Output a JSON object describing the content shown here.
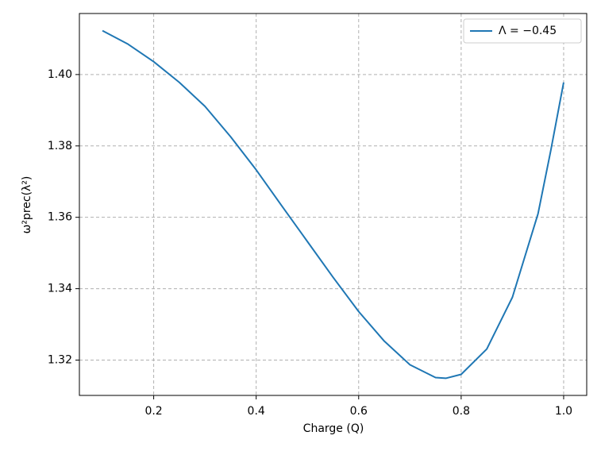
{
  "chart_data": {
    "type": "line",
    "xlabel": "Charge (Q)",
    "ylabel": "ω²prec(λ²)",
    "x": [
      0.1,
      0.15,
      0.2,
      0.25,
      0.3,
      0.35,
      0.4,
      0.45,
      0.5,
      0.55,
      0.6,
      0.65,
      0.7,
      0.75,
      0.77,
      0.8,
      0.85,
      0.9,
      0.95,
      0.975,
      1.0
    ],
    "series": [
      {
        "name": "Λ = −0.45",
        "color": "#1f77b4",
        "values": [
          1.4123,
          1.4085,
          1.4036,
          1.3978,
          1.3911,
          1.3826,
          1.3733,
          1.3632,
          1.3532,
          1.3432,
          1.3336,
          1.3253,
          1.3187,
          1.3151,
          1.3149,
          1.316,
          1.3231,
          1.3376,
          1.361,
          1.3788,
          1.3978
        ]
      }
    ],
    "xlim": [
      0.055,
      1.045
    ],
    "ylim": [
      1.3101,
      1.4171
    ],
    "xticks": [
      0.2,
      0.4,
      0.6,
      0.8,
      {
        "value": 1.0,
        "label": "1.0"
      }
    ],
    "yticks": [
      1.32,
      1.34,
      1.36,
      1.38,
      {
        "value": 1.4,
        "label": "1.40"
      }
    ],
    "grid": true,
    "legend": "upper right"
  }
}
